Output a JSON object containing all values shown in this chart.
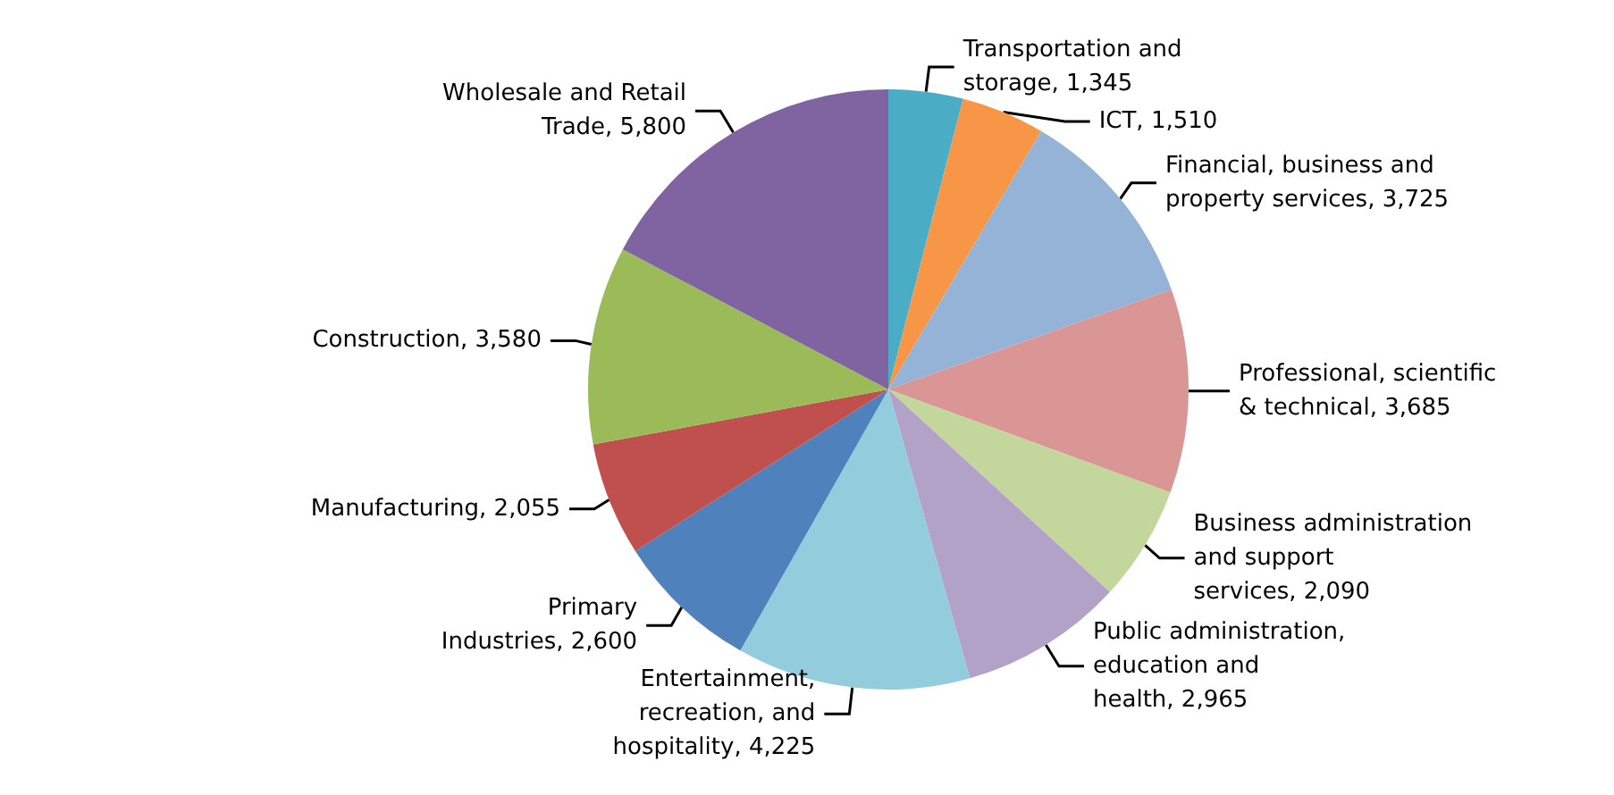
{
  "chart_data": {
    "type": "pie",
    "categories": [
      "Transportation and storage",
      "ICT",
      "Financial, business and property services",
      "Professional, scientific & technical",
      "Business administration and support services",
      "Public administration, education and health",
      "Entertainment, recreation, and hospitality",
      "Primary Industries",
      "Manufacturing",
      "Construction",
      "Wholesale and Retail Trade"
    ],
    "values": [
      1345,
      1510,
      3725,
      3685,
      2090,
      2965,
      4225,
      2600,
      2055,
      3580,
      5800
    ],
    "value_labels": [
      "1,345",
      "1,510",
      "3,725",
      "3,685",
      "2,090",
      "2,965",
      "4,225",
      "2,600",
      "2,055",
      "3,580",
      "5,800"
    ],
    "colors": [
      "#4bacc6",
      "#f79646",
      "#95b3d7",
      "#d99694",
      "#c3d69b",
      "#b3a2c7",
      "#93cddd",
      "#4f81bd",
      "#c0504d",
      "#9bbb59",
      "#8064a2"
    ],
    "legend": false
  }
}
